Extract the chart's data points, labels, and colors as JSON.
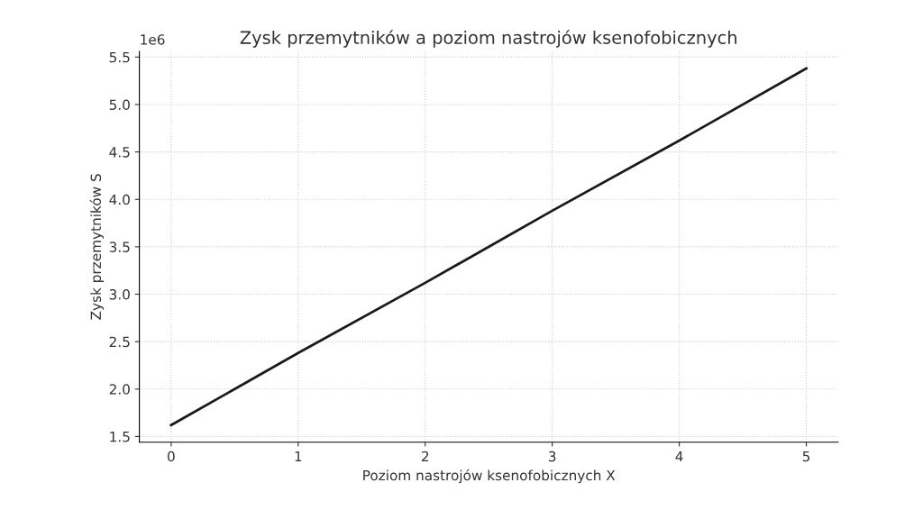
{
  "chart_data": {
    "type": "line",
    "title": "Zysk przemytników a poziom nastrojów ksenofobicznych",
    "xlabel": "Poziom nastrojów ksenofobicznych X",
    "ylabel": "Zysk przemytników S",
    "x": [
      0,
      1,
      2,
      3,
      4,
      5
    ],
    "series": [
      {
        "color": "#1a1a1a",
        "values": [
          1.62,
          2.38,
          3.12,
          3.88,
          4.62,
          5.38
        ]
      }
    ],
    "xlim": [
      -0.25,
      5.25
    ],
    "xticks": [
      0,
      1,
      2,
      3,
      4,
      5
    ],
    "ylim": [
      1.44,
      5.56
    ],
    "yticks": [
      1.5,
      {
        "value": 2,
        "label": "2.0"
      },
      2.5,
      {
        "value": 3,
        "label": "3.0"
      },
      3.5,
      {
        "value": 4,
        "label": "4.0"
      },
      4.5,
      {
        "value": 5,
        "label": "5.0"
      },
      5.5
    ],
    "annotations": [
      "1e6"
    ],
    "grid": true,
    "line_style": "solid",
    "marker": "none",
    "legend": false
  }
}
